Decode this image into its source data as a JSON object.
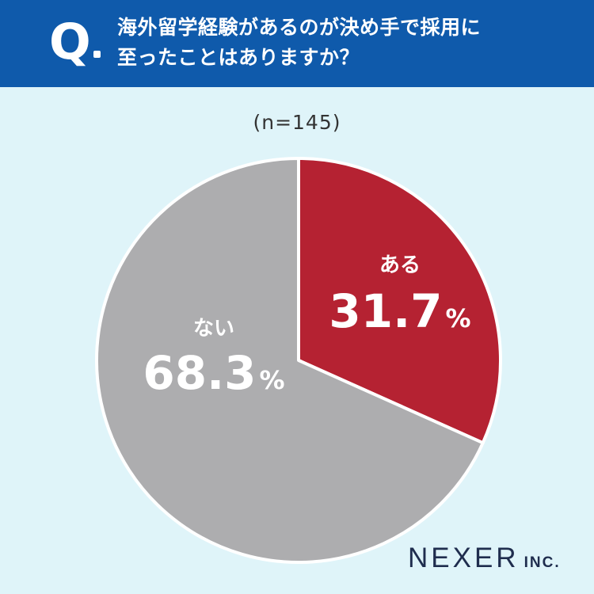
{
  "header": {
    "q_mark": "Q",
    "question_line1": "海外留学経験があるのが決め手で採用に",
    "question_line2": "至ったことはありますか？"
  },
  "sample_size": "(n=145)",
  "chart_data": {
    "type": "pie",
    "title": "",
    "categories": [
      "ある",
      "ない"
    ],
    "values": [
      31.7,
      68.3
    ],
    "unit": "%",
    "value_labels": [
      "31.7",
      "68.3"
    ],
    "colors": [
      "#b52232",
      "#adadaf"
    ],
    "start_angle": "12 o'clock, clockwise"
  },
  "brand": {
    "name": "NEXER",
    "suffix": "INC."
  },
  "colors": {
    "header": "#0f5aab",
    "background": "#dff4f9"
  }
}
